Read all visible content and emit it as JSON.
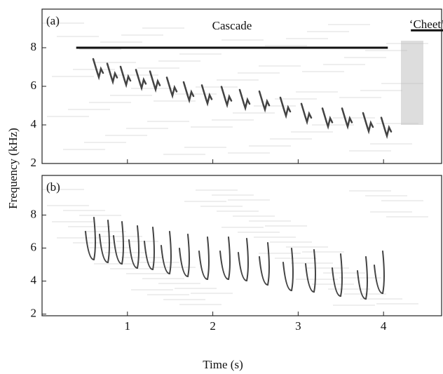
{
  "chart_data": [
    {
      "type": "spectrogram",
      "panel_label": "(a)",
      "ylabel": "Frequency (kHz)",
      "xlim": [
        0,
        4.68
      ],
      "ylim": [
        2,
        10
      ],
      "yticks": [
        2,
        4,
        6,
        8
      ],
      "xticks": [
        1,
        2,
        3,
        4
      ],
      "annotations": [
        {
          "text": "Cascade",
          "x": [
            0.4,
            4.05
          ],
          "y": 8
        },
        {
          "text": "‘Cheet’",
          "x": [
            4.32,
            4.7
          ],
          "y": 8.9
        }
      ]
    },
    {
      "type": "spectrogram",
      "panel_label": "(b)",
      "xlabel": "Time (s)",
      "xlim": [
        0,
        4.68
      ],
      "ylim": [
        1.9,
        10.4
      ],
      "yticks": [
        2,
        4,
        6,
        8
      ],
      "xticks": [
        1,
        2,
        3,
        4
      ]
    }
  ]
}
